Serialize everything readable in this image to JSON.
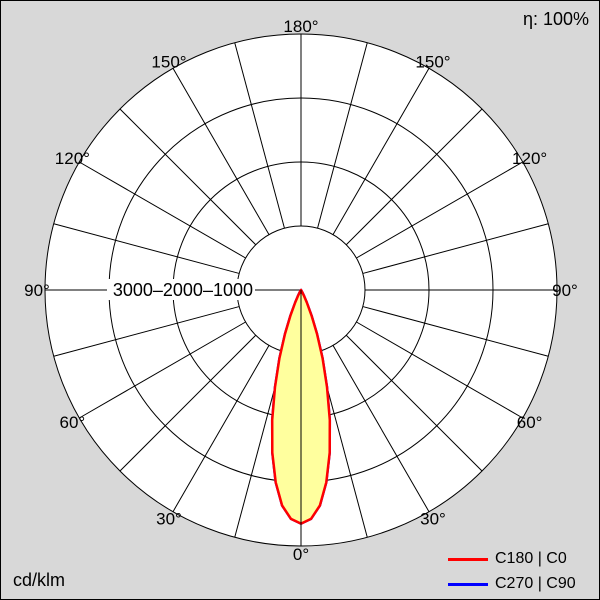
{
  "chart_data": {
    "type": "polar",
    "units": "cd/klm",
    "efficiency": "η: 100%",
    "radial_max": 4000,
    "radial_ticks": [
      1000,
      2000,
      3000
    ],
    "radial_axis_label_text": "3000–2000–1000",
    "grid_angle_step_deg": 15,
    "label_angle_step_deg": 30,
    "angle_labels": [
      "0°",
      "30°",
      "60°",
      "90°",
      "120°",
      "150°",
      "180°"
    ],
    "curve_fill_color": "#ffff9e",
    "series": [
      {
        "name": "C180 | C0",
        "color": "#ff0000",
        "symmetric": true,
        "points": [
          {
            "angle_deg": 0,
            "cd_per_klm": 3650
          },
          {
            "angle_deg": 2.5,
            "cd_per_klm": 3580
          },
          {
            "angle_deg": 5,
            "cd_per_klm": 3380
          },
          {
            "angle_deg": 7.5,
            "cd_per_klm": 3030
          },
          {
            "angle_deg": 10,
            "cd_per_klm": 2580
          },
          {
            "angle_deg": 12.5,
            "cd_per_klm": 2080
          },
          {
            "angle_deg": 15,
            "cd_per_klm": 1570
          },
          {
            "angle_deg": 17.5,
            "cd_per_klm": 1120
          },
          {
            "angle_deg": 20,
            "cd_per_klm": 730
          },
          {
            "angle_deg": 22.5,
            "cd_per_klm": 430
          },
          {
            "angle_deg": 25,
            "cd_per_klm": 215
          },
          {
            "angle_deg": 27.5,
            "cd_per_klm": 95
          },
          {
            "angle_deg": 30,
            "cd_per_klm": 38
          },
          {
            "angle_deg": 32.5,
            "cd_per_klm": 14
          },
          {
            "angle_deg": 35,
            "cd_per_klm": 5
          },
          {
            "angle_deg": 40,
            "cd_per_klm": 0
          }
        ]
      },
      {
        "name": "C270 | C90",
        "color": "#0000ff",
        "symmetric": true,
        "points": [
          {
            "angle_deg": 0,
            "cd_per_klm": 3650
          },
          {
            "angle_deg": 2.5,
            "cd_per_klm": 3580
          },
          {
            "angle_deg": 5,
            "cd_per_klm": 3380
          },
          {
            "angle_deg": 7.5,
            "cd_per_klm": 3030
          },
          {
            "angle_deg": 10,
            "cd_per_klm": 2580
          },
          {
            "angle_deg": 12.5,
            "cd_per_klm": 2080
          },
          {
            "angle_deg": 15,
            "cd_per_klm": 1570
          },
          {
            "angle_deg": 17.5,
            "cd_per_klm": 1120
          },
          {
            "angle_deg": 20,
            "cd_per_klm": 730
          },
          {
            "angle_deg": 22.5,
            "cd_per_klm": 430
          },
          {
            "angle_deg": 25,
            "cd_per_klm": 215
          },
          {
            "angle_deg": 27.5,
            "cd_per_klm": 95
          },
          {
            "angle_deg": 30,
            "cd_per_klm": 38
          },
          {
            "angle_deg": 32.5,
            "cd_per_klm": 14
          },
          {
            "angle_deg": 35,
            "cd_per_klm": 5
          },
          {
            "angle_deg": 40,
            "cd_per_klm": 0
          }
        ]
      }
    ]
  }
}
